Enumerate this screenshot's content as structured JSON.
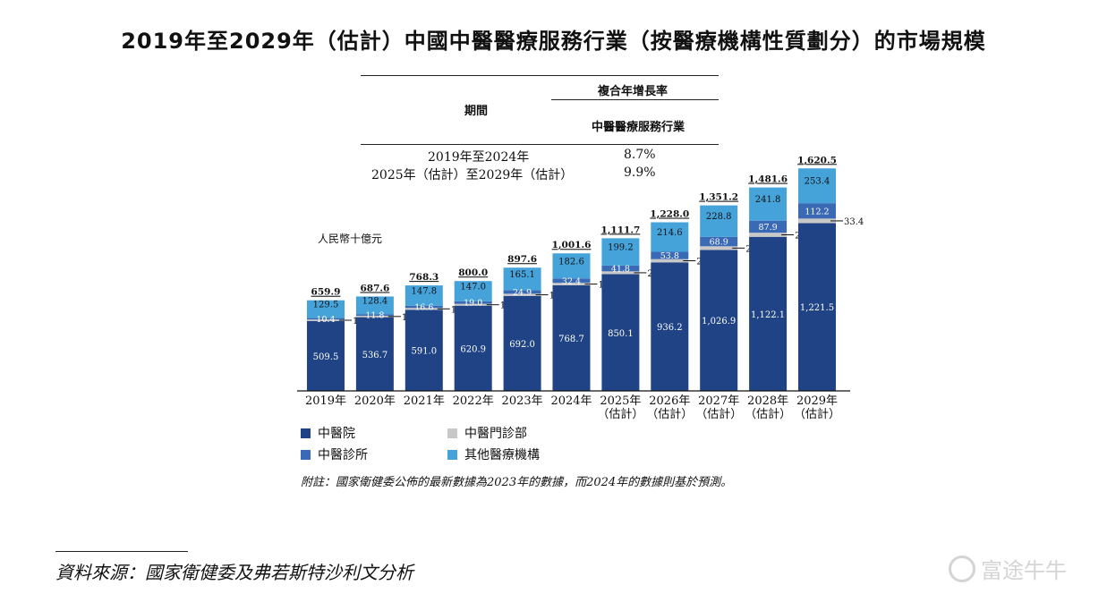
{
  "title": "2019年至2029年（估計）中國中醫醫療服務行業（按醫療機構性質劃分）的市場規模",
  "cagr_table": {
    "header_top": "複合年增長率",
    "header_period": "期間",
    "header_industry": "中醫醫療服務行業",
    "rows": [
      {
        "period": "2019年至2024年",
        "value": "8.7%"
      },
      {
        "period": "2025年（估計）至2029年（估計）",
        "value": "9.9%"
      }
    ]
  },
  "unit_label": "人民幣十億元",
  "note": "附註：國家衛健委公佈的最新數據為2023年的數據，而2024年的數據則基於預測。",
  "source": "資料來源：國家衛健委及弗若斯特沙利文分析",
  "watermark": "富途牛牛",
  "colors": {
    "hospital": "#1f4384",
    "outpatient": "#c8c8c8",
    "clinic": "#3a6ab5",
    "other": "#45a3da"
  },
  "chart_data": {
    "type": "bar",
    "stacked": true,
    "categories": [
      "2019年",
      "2020年",
      "2021年",
      "2022年",
      "2023年",
      "2024年",
      "2025年\n（估計）",
      "2026年\n（估計）",
      "2027年\n（估計）",
      "2028年\n（估計）",
      "2029年\n（估計）"
    ],
    "series": [
      {
        "name": "中醫院",
        "key": "hospital",
        "values": [
          509.5,
          536.7,
          591.0,
          620.9,
          692.0,
          768.7,
          850.1,
          936.2,
          1026.9,
          1122.1,
          1221.5
        ]
      },
      {
        "name": "中醫門診部",
        "key": "outpatient",
        "values": [
          10.5,
          10.7,
          12.9,
          13.1,
          15.6,
          18.0,
          20.6,
          23.4,
          26.5,
          29.8,
          33.4
        ]
      },
      {
        "name": "中醫診所",
        "key": "clinic",
        "values": [
          10.4,
          11.8,
          16.6,
          19.0,
          24.9,
          32.4,
          41.8,
          53.8,
          68.9,
          87.9,
          112.2
        ]
      },
      {
        "name": "其他醫療機構",
        "key": "other",
        "values": [
          129.5,
          128.4,
          147.8,
          147.0,
          165.1,
          182.6,
          199.2,
          214.6,
          228.8,
          241.8,
          253.4
        ]
      }
    ],
    "totals": [
      659.9,
      687.6,
      768.3,
      800.0,
      897.6,
      1001.6,
      1111.7,
      1228.0,
      1351.2,
      1481.6,
      1620.5
    ],
    "labels": {
      "hospital": [
        "509.5",
        "536.7",
        "591.0",
        "620.9",
        "692.0",
        "768.7",
        "850.1",
        "936.2",
        "1,026.9",
        "1,122.1",
        "1,221.5"
      ],
      "outpatient": [
        "10.5",
        "10.7",
        "12.9",
        "13.1",
        "15.6",
        "18.0",
        "20.6",
        "23.4",
        "26.5",
        "29.8",
        "33.4"
      ],
      "clinic": [
        "10.4",
        "11.8",
        "16.6",
        "19.0",
        "24.9",
        "32.4",
        "41.8",
        "53.8",
        "68.9",
        "87.9",
        "112.2"
      ],
      "other": [
        "129.5",
        "128.4",
        "147.8",
        "147.0",
        "165.1",
        "182.6",
        "199.2",
        "214.6",
        "228.8",
        "241.8",
        "253.4"
      ],
      "totals": [
        "659.9",
        "687.6",
        "768.3",
        "800.0",
        "897.6",
        "1,001.6",
        "1,111.7",
        "1,228.0",
        "1,351.2",
        "1,481.6",
        "1,620.5"
      ]
    },
    "legend": [
      "中醫院",
      "中醫門診部",
      "中醫診所",
      "其他醫療機構"
    ],
    "legend_position": "bottom-left",
    "ylim": [
      0,
      1700
    ],
    "grid": false
  }
}
